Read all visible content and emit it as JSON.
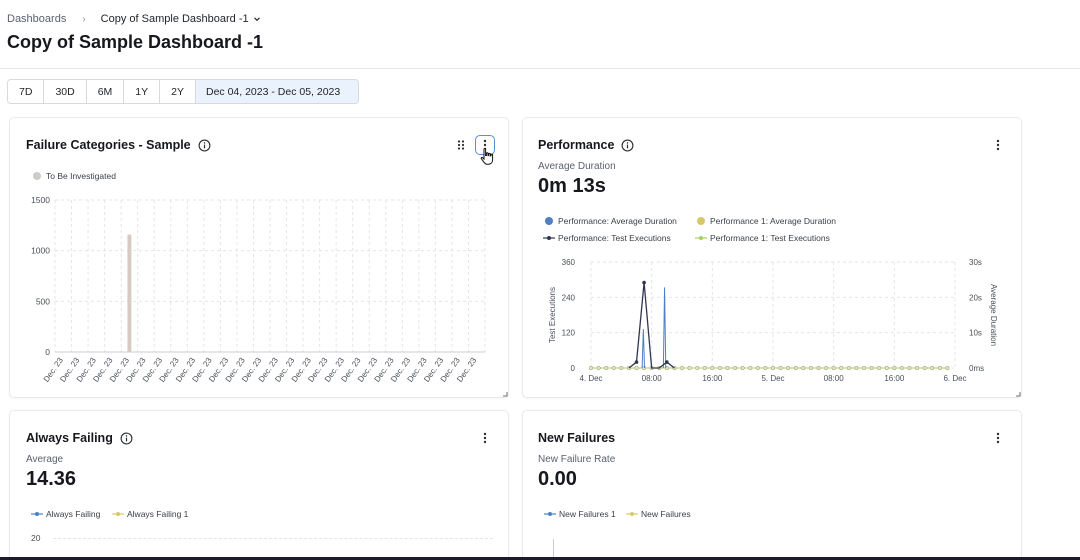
{
  "breadcrumb": {
    "root": "Dashboards",
    "current": "Copy of Sample Dashboard -1"
  },
  "page": {
    "title": "Copy of Sample Dashboard -1"
  },
  "range": {
    "buttons": [
      "7D",
      "30D",
      "6M",
      "1Y",
      "2Y"
    ],
    "active_range": "Dec 04, 2023 - Dec 05, 2023"
  },
  "colors": {
    "series_dark": "#2f3650",
    "series_blue": "#4f7ec8",
    "series_yellow": "#d8c76a",
    "series_green": "#a9cf5c",
    "bar": "#d6ccc4",
    "grid": "#e3e5e8"
  },
  "cards": {
    "failure_categories": {
      "title": "Failure Categories - Sample",
      "legend": "To Be Investigated",
      "chart_data": {
        "type": "bar",
        "title": "Failure Categories - Sample",
        "categories": [
          "Dec. 23",
          "Dec. 23",
          "Dec. 23",
          "Dec. 23",
          "Dec. 23",
          "Dec. 23",
          "Dec. 23",
          "Dec. 23",
          "Dec. 23",
          "Dec. 23",
          "Dec. 23",
          "Dec. 23",
          "Dec. 23",
          "Dec. 23",
          "Dec. 23",
          "Dec. 23",
          "Dec. 23",
          "Dec. 23",
          "Dec. 23",
          "Dec. 23",
          "Dec. 23",
          "Dec. 23",
          "Dec. 23",
          "Dec. 23",
          "Dec. 23",
          "Dec. 23"
        ],
        "series": [
          {
            "name": "To Be Investigated",
            "values": [
              0,
              0,
              0,
              0,
              1160,
              0,
              0,
              0,
              0,
              0,
              0,
              0,
              0,
              0,
              0,
              0,
              0,
              0,
              0,
              0,
              0,
              0,
              0,
              0,
              0,
              0
            ]
          }
        ],
        "ylim": [
          0,
          1500
        ],
        "yticks": [
          "1500",
          "1000",
          "500",
          "0"
        ]
      }
    },
    "performance": {
      "title": "Performance",
      "metric_label": "Average Duration",
      "metric_value": "0m 13s",
      "legend": [
        "Performance: Average Duration",
        "Performance 1: Average Duration",
        "Performance: Test Executions",
        "Performance 1: Test Executions"
      ],
      "chart_data": {
        "type": "line",
        "title": "Performance",
        "ylabel": "Test Executions",
        "y2label": "Average Duration",
        "ylim": [
          0,
          360
        ],
        "yticks": [
          "360",
          "240",
          "120",
          "0"
        ],
        "y2ticks": [
          "30s",
          "20s",
          "10s",
          "0ms"
        ],
        "xticks": [
          "4. Dec",
          "08:00",
          "16:00",
          "5. Dec",
          "08:00",
          "16:00",
          "6. Dec"
        ],
        "xlim_hours": [
          0,
          48
        ],
        "series": [
          {
            "name": "Performance: Test Executions",
            "x_hours": [
              0,
              1,
              2,
              3,
              4,
              5,
              6,
              7,
              8,
              9,
              10,
              11,
              12,
              13,
              14,
              15,
              16,
              17,
              18,
              19,
              20,
              21,
              22,
              23,
              24,
              25,
              26,
              27,
              28,
              29,
              30,
              31,
              32,
              33,
              34,
              35,
              36,
              37,
              38,
              39,
              40,
              41,
              42,
              43,
              44,
              45,
              46,
              47
            ],
            "values": [
              0,
              0,
              0,
              0,
              0,
              0,
              20,
              290,
              0,
              0,
              20,
              0,
              0,
              0,
              0,
              0,
              0,
              0,
              0,
              0,
              0,
              0,
              0,
              0,
              0,
              0,
              0,
              0,
              0,
              0,
              0,
              0,
              0,
              0,
              0,
              0,
              0,
              0,
              0,
              0,
              0,
              0,
              0,
              0,
              0,
              0,
              0,
              0
            ]
          },
          {
            "name": "Performance: Average Duration (s)",
            "x_hours": [
              6.9,
              9.7
            ],
            "values": [
              11,
              22.8
            ]
          }
        ]
      }
    },
    "always_failing": {
      "title": "Always Failing",
      "metric_label": "Average",
      "metric_value": "14.36",
      "legend": [
        "Always Failing",
        "Always Failing 1"
      ],
      "chart_data": {
        "type": "line",
        "title": "Always Failing",
        "yticks": [
          "20"
        ]
      }
    },
    "new_failures": {
      "title": "New Failures",
      "metric_label": "New Failure Rate",
      "metric_value": "0.00",
      "legend": [
        "New Failures 1",
        "New Failures"
      ],
      "chart_data": {
        "type": "line",
        "title": "New Failures"
      }
    }
  }
}
